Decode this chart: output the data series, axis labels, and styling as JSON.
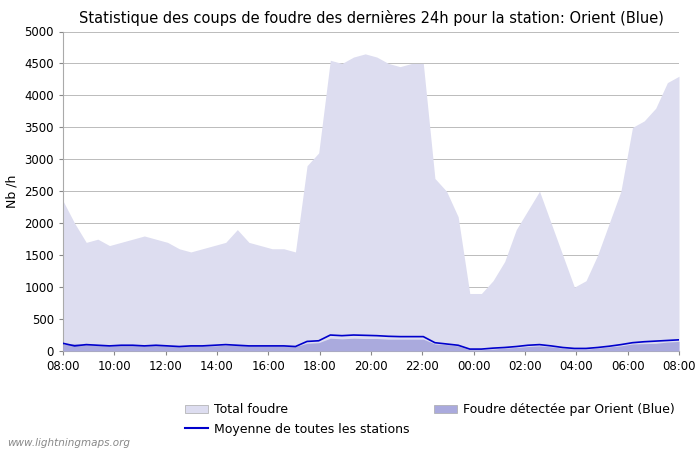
{
  "title": "Statistique des coups de foudre des dernières 24h pour la station: Orient (Blue)",
  "ylabel": "Nb /h",
  "watermark": "www.lightningmaps.org",
  "legend": {
    "total_foudre": "Total foudre",
    "moyenne": "Moyenne de toutes les stations",
    "foudre_detected": "Foudre détectée par Orient (Blue)"
  },
  "x_ticks": [
    "08:00",
    "10:00",
    "12:00",
    "14:00",
    "16:00",
    "18:00",
    "20:00",
    "22:00",
    "00:00",
    "02:00",
    "04:00",
    "06:00",
    "08:00"
  ],
  "ylim": [
    0,
    5000
  ],
  "yticks": [
    0,
    500,
    1000,
    1500,
    2000,
    2500,
    3000,
    3500,
    4000,
    4500,
    5000
  ],
  "total_foudre_color": "#ddddf0",
  "detected_color": "#aaaadd",
  "moyenne_color": "#0000cc",
  "background_color": "#ffffff",
  "grid_color": "#bbbbbb",
  "title_fontsize": 10.5,
  "axis_fontsize": 9,
  "tick_fontsize": 8.5,
  "total_foudre_values": [
    2350,
    2000,
    1700,
    1750,
    1650,
    1700,
    1750,
    1800,
    1750,
    1700,
    1600,
    1550,
    1600,
    1650,
    1700,
    1900,
    1700,
    1650,
    1600,
    1600,
    1550,
    2900,
    3100,
    4550,
    4500,
    4600,
    4650,
    4600,
    4500,
    4450,
    4500,
    4500,
    2700,
    2500,
    2100,
    900,
    900,
    1100,
    1400,
    1900,
    2200,
    2500,
    2000,
    1500,
    1000,
    1100,
    1500,
    2000,
    2500,
    3500,
    3600,
    3800,
    4200,
    4300
  ],
  "detected_foudre_values": [
    100,
    120,
    100,
    90,
    80,
    90,
    90,
    80,
    90,
    80,
    70,
    80,
    80,
    80,
    90,
    90,
    80,
    80,
    80,
    80,
    70,
    120,
    130,
    200,
    190,
    200,
    195,
    195,
    185,
    185,
    185,
    185,
    110,
    100,
    80,
    20,
    20,
    30,
    45,
    55,
    70,
    80,
    65,
    45,
    30,
    30,
    45,
    65,
    80,
    110,
    115,
    120,
    140,
    150
  ],
  "moyenne_values": [
    120,
    80,
    100,
    90,
    80,
    90,
    90,
    80,
    90,
    80,
    70,
    80,
    80,
    90,
    100,
    90,
    80,
    80,
    80,
    80,
    70,
    150,
    160,
    250,
    240,
    250,
    245,
    240,
    230,
    225,
    225,
    225,
    130,
    110,
    90,
    30,
    30,
    45,
    55,
    70,
    90,
    100,
    80,
    55,
    40,
    40,
    55,
    75,
    100,
    130,
    145,
    155,
    165,
    175
  ]
}
